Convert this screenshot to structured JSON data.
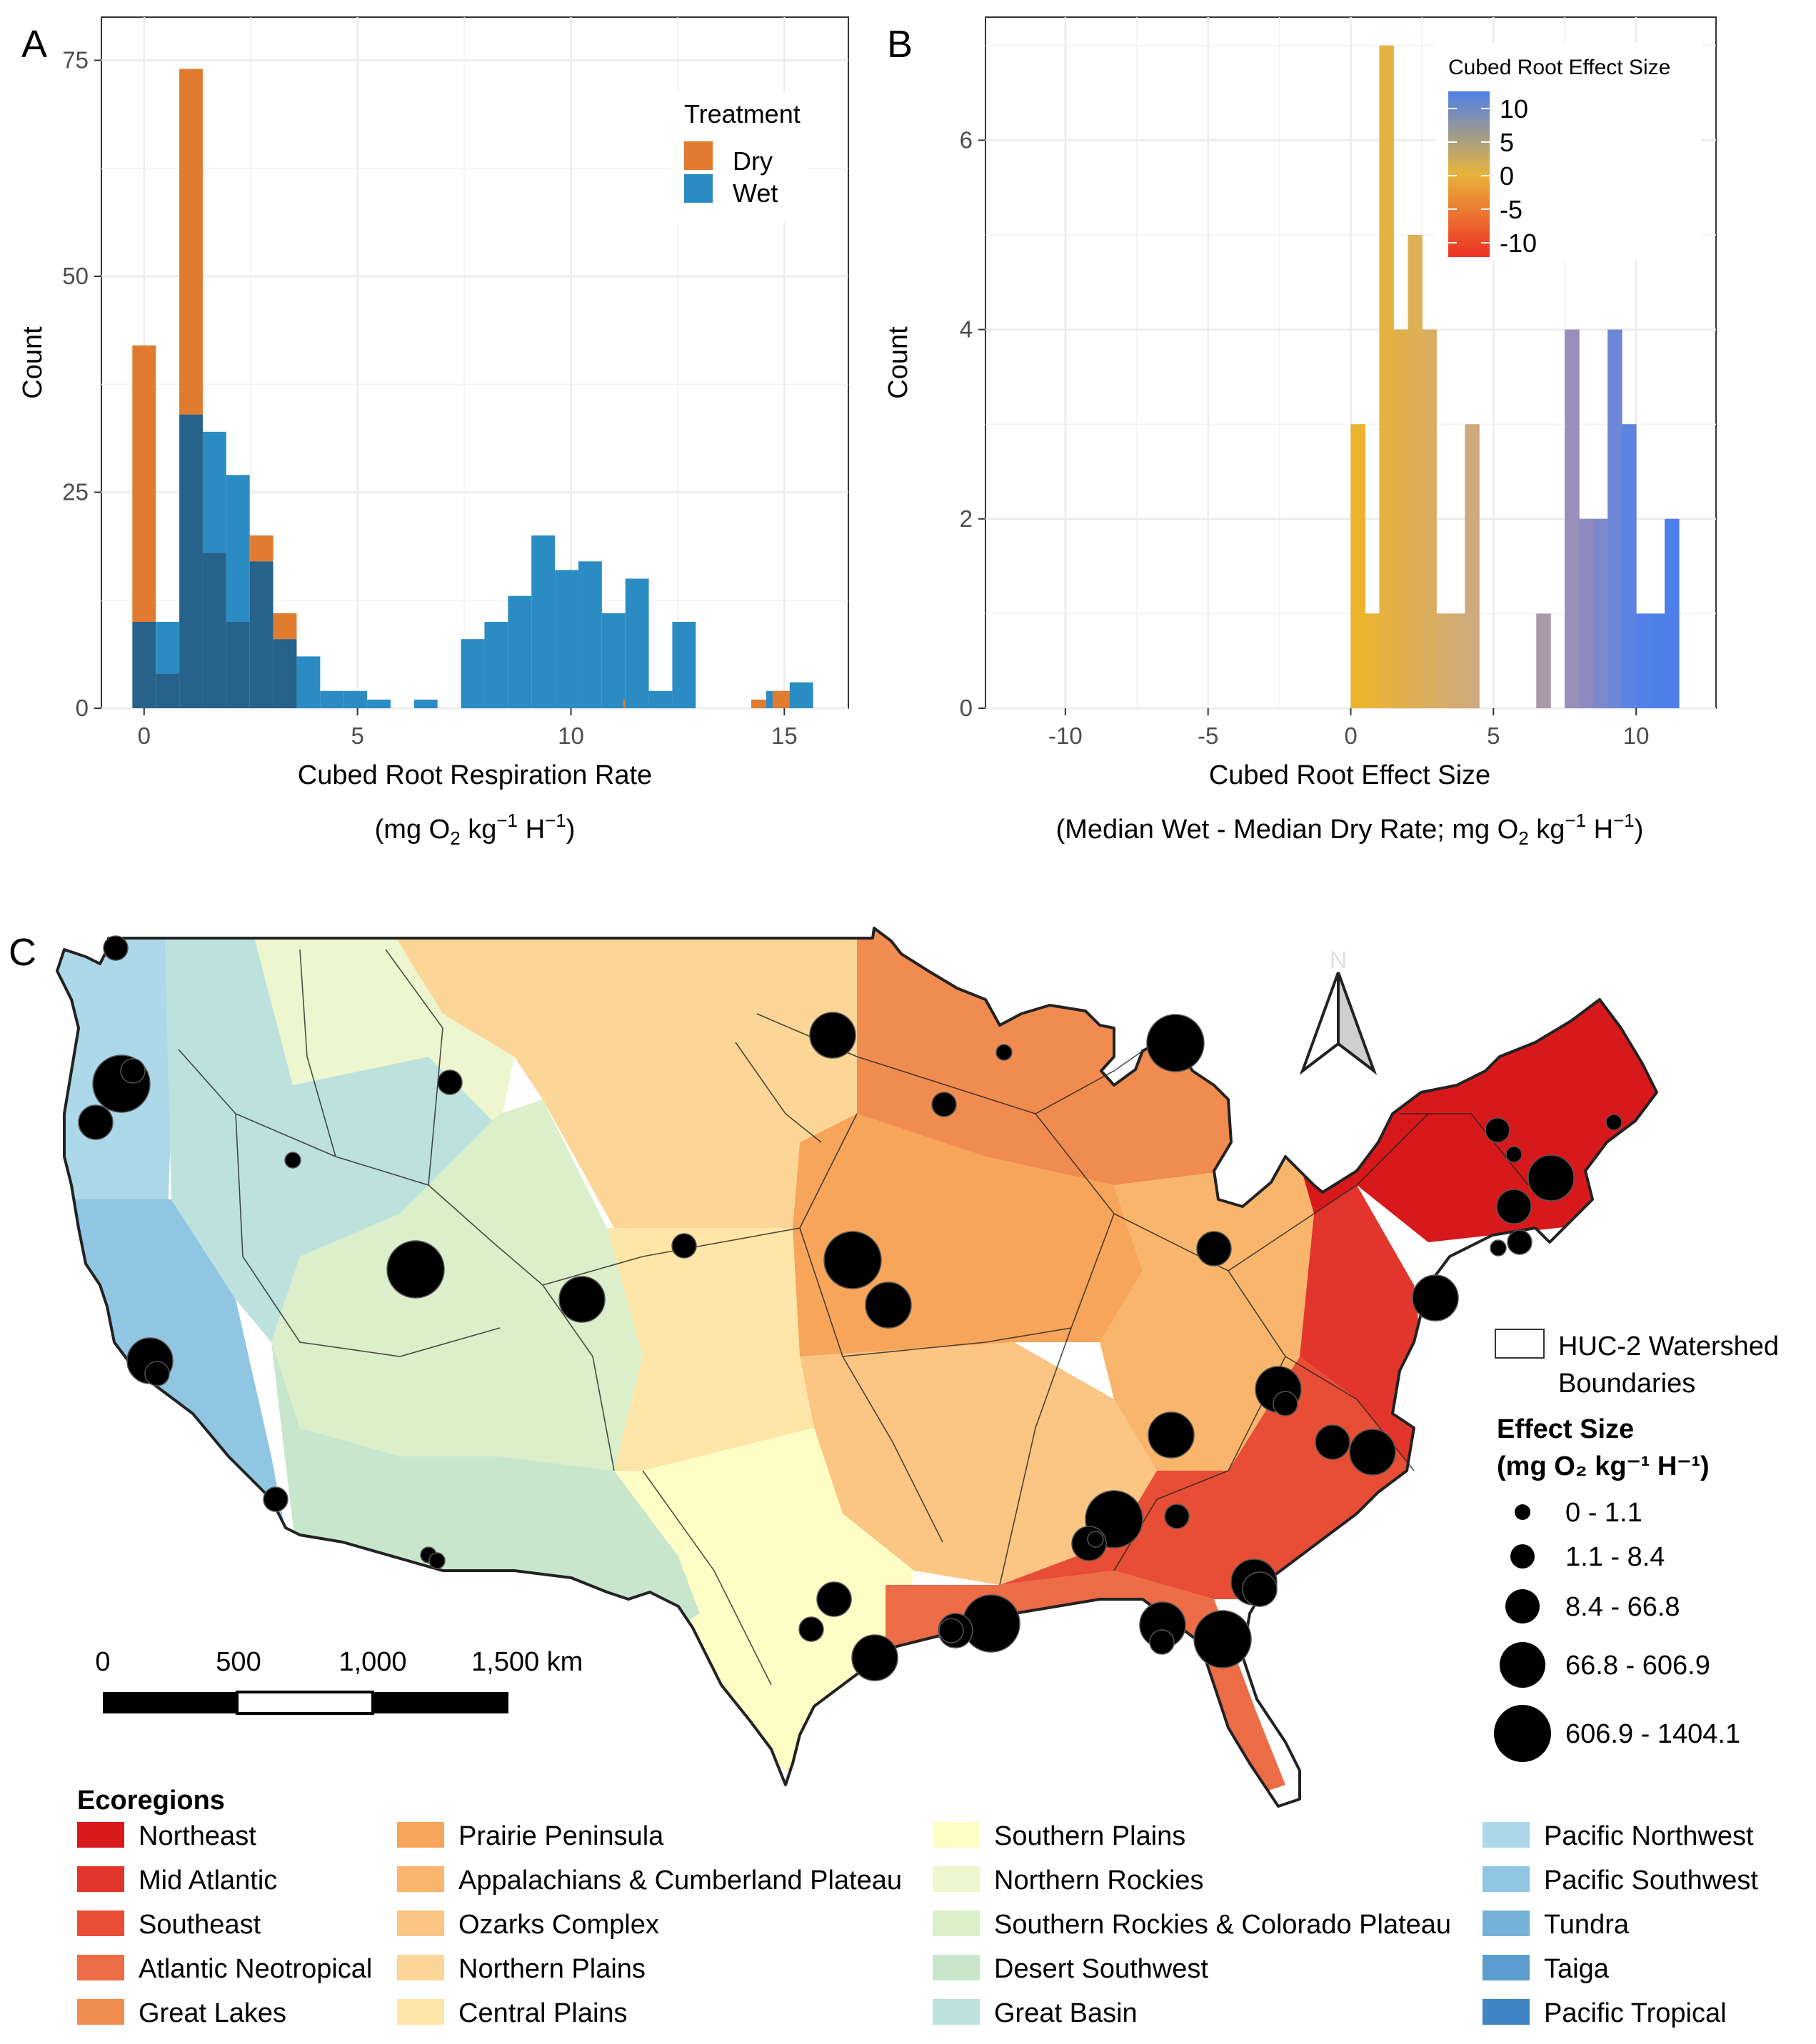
{
  "panels": {
    "a": "A",
    "b": "B",
    "c": "C"
  },
  "colors": {
    "dry": "#E07B2F",
    "wet": "#2B8CC4",
    "overlap": "#27628A"
  },
  "chart_data": [
    {
      "type": "bar",
      "panel": "A",
      "xlabel": "Cubed Root Respiration Rate",
      "xlabel_units_prefix": "(mg O",
      "xlabel_units_sub": "2",
      "xlabel_units_mid": " kg",
      "xlabel_units_sup1": "−1",
      "xlabel_units_h": " H",
      "xlabel_units_sup2": "−1",
      "xlabel_units_suffix": ")",
      "ylabel": "Count",
      "xlim": [
        -1,
        16.5
      ],
      "ylim": [
        0,
        80
      ],
      "xticks": [
        0,
        5,
        10,
        15
      ],
      "yticks": [
        0,
        25,
        50,
        75
      ],
      "legend": {
        "title": "Treatment",
        "position": "top-right"
      },
      "bin_width": 0.55,
      "series": [
        {
          "name": "Dry",
          "bins": [
            [
              0.0,
              42
            ],
            [
              0.55,
              4
            ],
            [
              1.1,
              74
            ],
            [
              1.65,
              18
            ],
            [
              2.2,
              10
            ],
            [
              2.75,
              20
            ],
            [
              3.3,
              11
            ],
            [
              11.5,
              1
            ],
            [
              14.5,
              1
            ],
            [
              15.0,
              2
            ]
          ]
        },
        {
          "name": "Wet",
          "bins": [
            [
              0.0,
              10
            ],
            [
              0.55,
              10
            ],
            [
              1.1,
              34
            ],
            [
              1.65,
              32
            ],
            [
              2.2,
              27
            ],
            [
              2.75,
              17
            ],
            [
              3.3,
              8
            ],
            [
              3.85,
              6
            ],
            [
              4.4,
              2
            ],
            [
              4.95,
              2
            ],
            [
              5.5,
              1
            ],
            [
              6.05,
              0
            ],
            [
              6.6,
              1
            ],
            [
              7.15,
              0
            ],
            [
              7.7,
              8
            ],
            [
              8.25,
              10
            ],
            [
              8.8,
              13
            ],
            [
              9.35,
              20
            ],
            [
              9.9,
              16
            ],
            [
              10.45,
              17
            ],
            [
              11.0,
              11
            ],
            [
              11.55,
              15
            ],
            [
              12.1,
              2
            ],
            [
              12.65,
              10
            ],
            [
              13.2,
              0
            ],
            [
              13.75,
              0
            ],
            [
              14.3,
              0
            ],
            [
              14.85,
              2
            ],
            [
              15.4,
              3
            ]
          ]
        }
      ]
    },
    {
      "type": "bar",
      "panel": "B",
      "xlabel": "Cubed Root Effect Size",
      "xlabel_units_prefix": "(Median Wet - Median Dry Rate; mg O",
      "xlabel_units_sub": "2",
      "xlabel_units_mid": " kg",
      "xlabel_units_sup1": "−1",
      "xlabel_units_h": " H",
      "xlabel_units_sup2": "−1",
      "xlabel_units_suffix": ")",
      "ylabel": "Count",
      "xlim": [
        -12.8,
        12.8
      ],
      "ylim": [
        0,
        7.3
      ],
      "xticks": [
        -10,
        -5,
        0,
        5,
        10
      ],
      "yticks": [
        0,
        2,
        4,
        6
      ],
      "legend": {
        "title": "Cubed Root Effect Size",
        "position": "top-right",
        "values": [
          "10",
          "5",
          "0",
          "-5",
          "-10"
        ]
      },
      "bin_width": 0.5,
      "bins": [
        [
          0.0,
          3
        ],
        [
          0.5,
          1
        ],
        [
          1.0,
          7
        ],
        [
          1.5,
          4
        ],
        [
          2.0,
          5
        ],
        [
          2.5,
          4
        ],
        [
          3.0,
          1
        ],
        [
          3.5,
          1
        ],
        [
          4.0,
          3
        ],
        [
          6.5,
          1
        ],
        [
          7.0,
          0
        ],
        [
          7.5,
          4
        ],
        [
          8.0,
          2
        ],
        [
          8.5,
          2
        ],
        [
          9.0,
          4
        ],
        [
          9.5,
          3
        ],
        [
          10.0,
          1
        ],
        [
          10.5,
          1
        ],
        [
          11.0,
          2
        ]
      ]
    }
  ],
  "map": {
    "north_label": "N",
    "scale_labels": [
      "0",
      "500",
      "1,000",
      "1,500 km"
    ],
    "huc_label": [
      "HUC-2 Watershed",
      "Boundaries"
    ],
    "effect_title": [
      "Effect Size",
      "(mg O₂ kg⁻¹ H⁻¹)"
    ],
    "effect_classes": [
      "0 - 1.1",
      "1.1 - 8.4",
      "8.4 - 66.8",
      "66.8 - 606.9",
      "606.9 - 1404.1"
    ],
    "ecoregions_title": "Ecoregions",
    "ecoregions": [
      {
        "name": "Northeast",
        "color": "#D7191C"
      },
      {
        "name": "Mid Atlantic",
        "color": "#E2362C"
      },
      {
        "name": "Southeast",
        "color": "#E74E35"
      },
      {
        "name": "Atlantic Neotropical",
        "color": "#EC6C45"
      },
      {
        "name": "Great Lakes",
        "color": "#F08C4F"
      },
      {
        "name": "Prairie Peninsula",
        "color": "#F7A55A"
      },
      {
        "name": "Appalachians & Cumberland Plateau",
        "color": "#F9B56C"
      },
      {
        "name": "Ozarks Complex",
        "color": "#FBC584"
      },
      {
        "name": "Northern Plains",
        "color": "#FCD697"
      },
      {
        "name": "Central Plains",
        "color": "#FDE6A8"
      },
      {
        "name": "Southern Plains",
        "color": "#FFFDC6"
      },
      {
        "name": "Northern Rockies",
        "color": "#EEF6CF"
      },
      {
        "name": "Southern Rockies & Colorado Plateau",
        "color": "#DBEFCB"
      },
      {
        "name": "Desert Southwest",
        "color": "#C8E6CC"
      },
      {
        "name": "Great Basin",
        "color": "#BDE2DD"
      },
      {
        "name": "Pacific Northwest",
        "color": "#ACD8EA"
      },
      {
        "name": "Pacific Southwest",
        "color": "#91C6E2"
      },
      {
        "name": "Tundra",
        "color": "#76B1D8"
      },
      {
        "name": "Taiga",
        "color": "#5C9DCF"
      },
      {
        "name": "Pacific Tropical",
        "color": "#3F85C3"
      }
    ]
  }
}
